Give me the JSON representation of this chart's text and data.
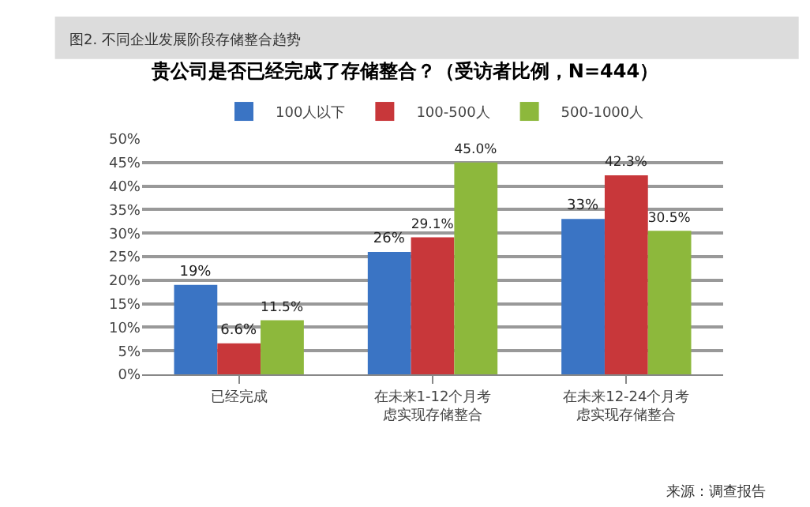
{
  "chart_data": {
    "type": "bar",
    "title": "贵公司是否已经完成了存储整合？（受访者比例，N=444）",
    "annotations": [
      "图2. 不同企业发展阶段存储整合趋势",
      "来源：调查报告"
    ],
    "categories": [
      "已经完成",
      "在未来1-12个月考虑实现存储整合",
      "在未来12-24个月考虑实现存储整合"
    ],
    "series": [
      {
        "name": "100人以下",
        "color": "#3a74c4",
        "values": [
          19,
          26,
          33
        ],
        "value_labels": [
          "19%",
          "26%",
          "33%"
        ]
      },
      {
        "name": "100-500人",
        "color": "#c8373a",
        "values": [
          6.6,
          29.1,
          42.3
        ],
        "value_labels": [
          "6.6%",
          "29.1%",
          "42.3%"
        ]
      },
      {
        "name": "500-1000人",
        "color": "#8db83c",
        "values": [
          11.5,
          45.0,
          30.5
        ],
        "value_labels": [
          "11.5%",
          "45.0%",
          "30.5%"
        ]
      }
    ],
    "ylim": [
      0,
      50
    ],
    "yticks": [
      {
        "value": 0,
        "label": "0%"
      },
      {
        "value": 5,
        "label": "5%"
      },
      {
        "value": 10,
        "label": "10%"
      },
      {
        "value": 15,
        "label": "15%"
      },
      {
        "value": 20,
        "label": "20%"
      },
      {
        "value": 25,
        "label": "25%"
      },
      {
        "value": 30,
        "label": "30%"
      },
      {
        "value": 35,
        "label": "35%"
      },
      {
        "value": 40,
        "label": "40%"
      },
      {
        "value": 45,
        "label": "45%"
      },
      {
        "value": 50,
        "label": "50%"
      }
    ],
    "grid": "y",
    "legend": "top"
  }
}
